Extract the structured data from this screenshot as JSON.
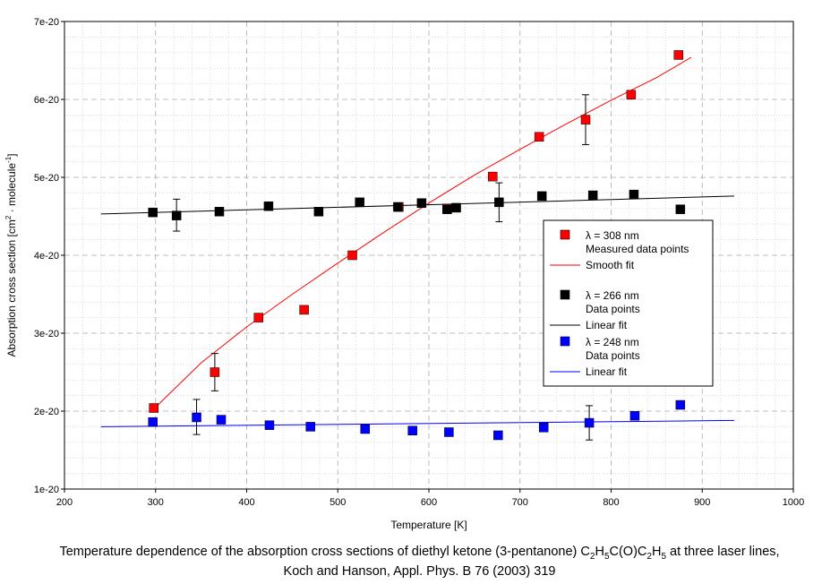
{
  "chart_data": {
    "type": "scatter",
    "xlabel": "Temperature [K]",
    "ylabel": {
      "text_main": "Absorption cross section [cm",
      "sup1": "2",
      "text_mid": " · molecule",
      "sup2": "-1",
      "text_end": "]"
    },
    "xlim": [
      200,
      1000
    ],
    "ylim": [
      1e-20,
      7e-20
    ],
    "x_ticks": [
      200,
      300,
      400,
      500,
      600,
      700,
      800,
      900,
      1000
    ],
    "x_tick_labels": [
      "200",
      "300",
      "400",
      "500",
      "600",
      "700",
      "800",
      "900",
      "1000"
    ],
    "y_ticks": [
      1e-20,
      2e-20,
      3e-20,
      4e-20,
      5e-20,
      6e-20,
      7e-20
    ],
    "y_tick_labels": [
      "1e-20",
      "2e-20",
      "3e-20",
      "4e-20",
      "5e-20",
      "6e-20",
      "7e-20"
    ],
    "grid": true,
    "legend_position": "right",
    "series": [
      {
        "name": "λ = 308 nm",
        "points_label": "Measured data points",
        "fit_label": "Smooth fit",
        "color": "#ff0000",
        "x": [
          298,
          365,
          413,
          463,
          516,
          567,
          620,
          670,
          721,
          772,
          822,
          874
        ],
        "y": [
          2.04e-20,
          2.5e-20,
          3.2e-20,
          3.3e-20,
          4e-20,
          4.62e-20,
          4.6e-20,
          5.01e-20,
          5.52e-20,
          5.74e-20,
          6.06e-20,
          6.57e-20
        ],
        "errorbars": [
          {
            "x": 365,
            "low": 2.26e-20,
            "high": 2.74e-20
          },
          {
            "x": 772,
            "low": 5.42e-20,
            "high": 6.06e-20
          }
        ],
        "fit": {
          "x": [
            300,
            350,
            400,
            450,
            500,
            550,
            600,
            650,
            700,
            750,
            800,
            850,
            888
          ],
          "y": [
            2.05e-20,
            2.62e-20,
            3.08e-20,
            3.5e-20,
            3.9e-20,
            4.29e-20,
            4.67e-20,
            5.03e-20,
            5.36e-20,
            5.68e-20,
            5.99e-20,
            6.28e-20,
            6.54e-20
          ]
        }
      },
      {
        "name": "λ = 266 nm",
        "points_label": "Data points",
        "fit_label": "Linear fit",
        "color": "#000000",
        "x": [
          297,
          323,
          370,
          424,
          479,
          524,
          566,
          592,
          620,
          630,
          677,
          724,
          780,
          825,
          876
        ],
        "y": [
          4.55e-20,
          4.51e-20,
          4.56e-20,
          4.63e-20,
          4.56e-20,
          4.68e-20,
          4.62e-20,
          4.67e-20,
          4.59e-20,
          4.61e-20,
          4.68e-20,
          4.76e-20,
          4.77e-20,
          4.78e-20,
          4.59e-20
        ],
        "errorbars": [
          {
            "x": 323,
            "low": 4.31e-20,
            "high": 4.72e-20
          },
          {
            "x": 677,
            "low": 4.43e-20,
            "high": 4.93e-20
          }
        ],
        "fit": {
          "x": [
            240,
            935
          ],
          "y": [
            4.53e-20,
            4.76e-20
          ]
        }
      },
      {
        "name": "λ = 248 nm",
        "points_label": "Data points",
        "fit_label": "Linear fit",
        "color": "#0000ff",
        "x": [
          297,
          345,
          372,
          425,
          470,
          530,
          582,
          622,
          676,
          726,
          776,
          826,
          876
        ],
        "y": [
          1.86e-20,
          1.92e-20,
          1.89e-20,
          1.82e-20,
          1.8e-20,
          1.77e-20,
          1.75e-20,
          1.73e-20,
          1.69e-20,
          1.79e-20,
          1.85e-20,
          1.94e-20,
          2.08e-20
        ],
        "errorbars": [
          {
            "x": 345,
            "low": 1.7e-20,
            "high": 2.15e-20
          },
          {
            "x": 776,
            "low": 1.63e-20,
            "high": 2.07e-20
          }
        ],
        "fit": {
          "x": [
            240,
            935
          ],
          "y": [
            1.8e-20,
            1.88e-20
          ]
        }
      }
    ]
  },
  "caption": {
    "line1_before": "Temperature dependence of the absorption cross sections of diethyl ketone (3-pentanone) C",
    "formula_parts": [
      {
        "t": "2",
        "sub": true
      },
      {
        "t": "H",
        "sub": false
      },
      {
        "t": "5",
        "sub": true
      },
      {
        "t": "C(O)C",
        "sub": false
      },
      {
        "t": "2",
        "sub": true
      },
      {
        "t": "H",
        "sub": false
      },
      {
        "t": "5",
        "sub": true
      }
    ],
    "line1_after": " at three laser lines,",
    "line2": "Koch and Hanson, Appl. Phys. B 76 (2003) 319"
  }
}
